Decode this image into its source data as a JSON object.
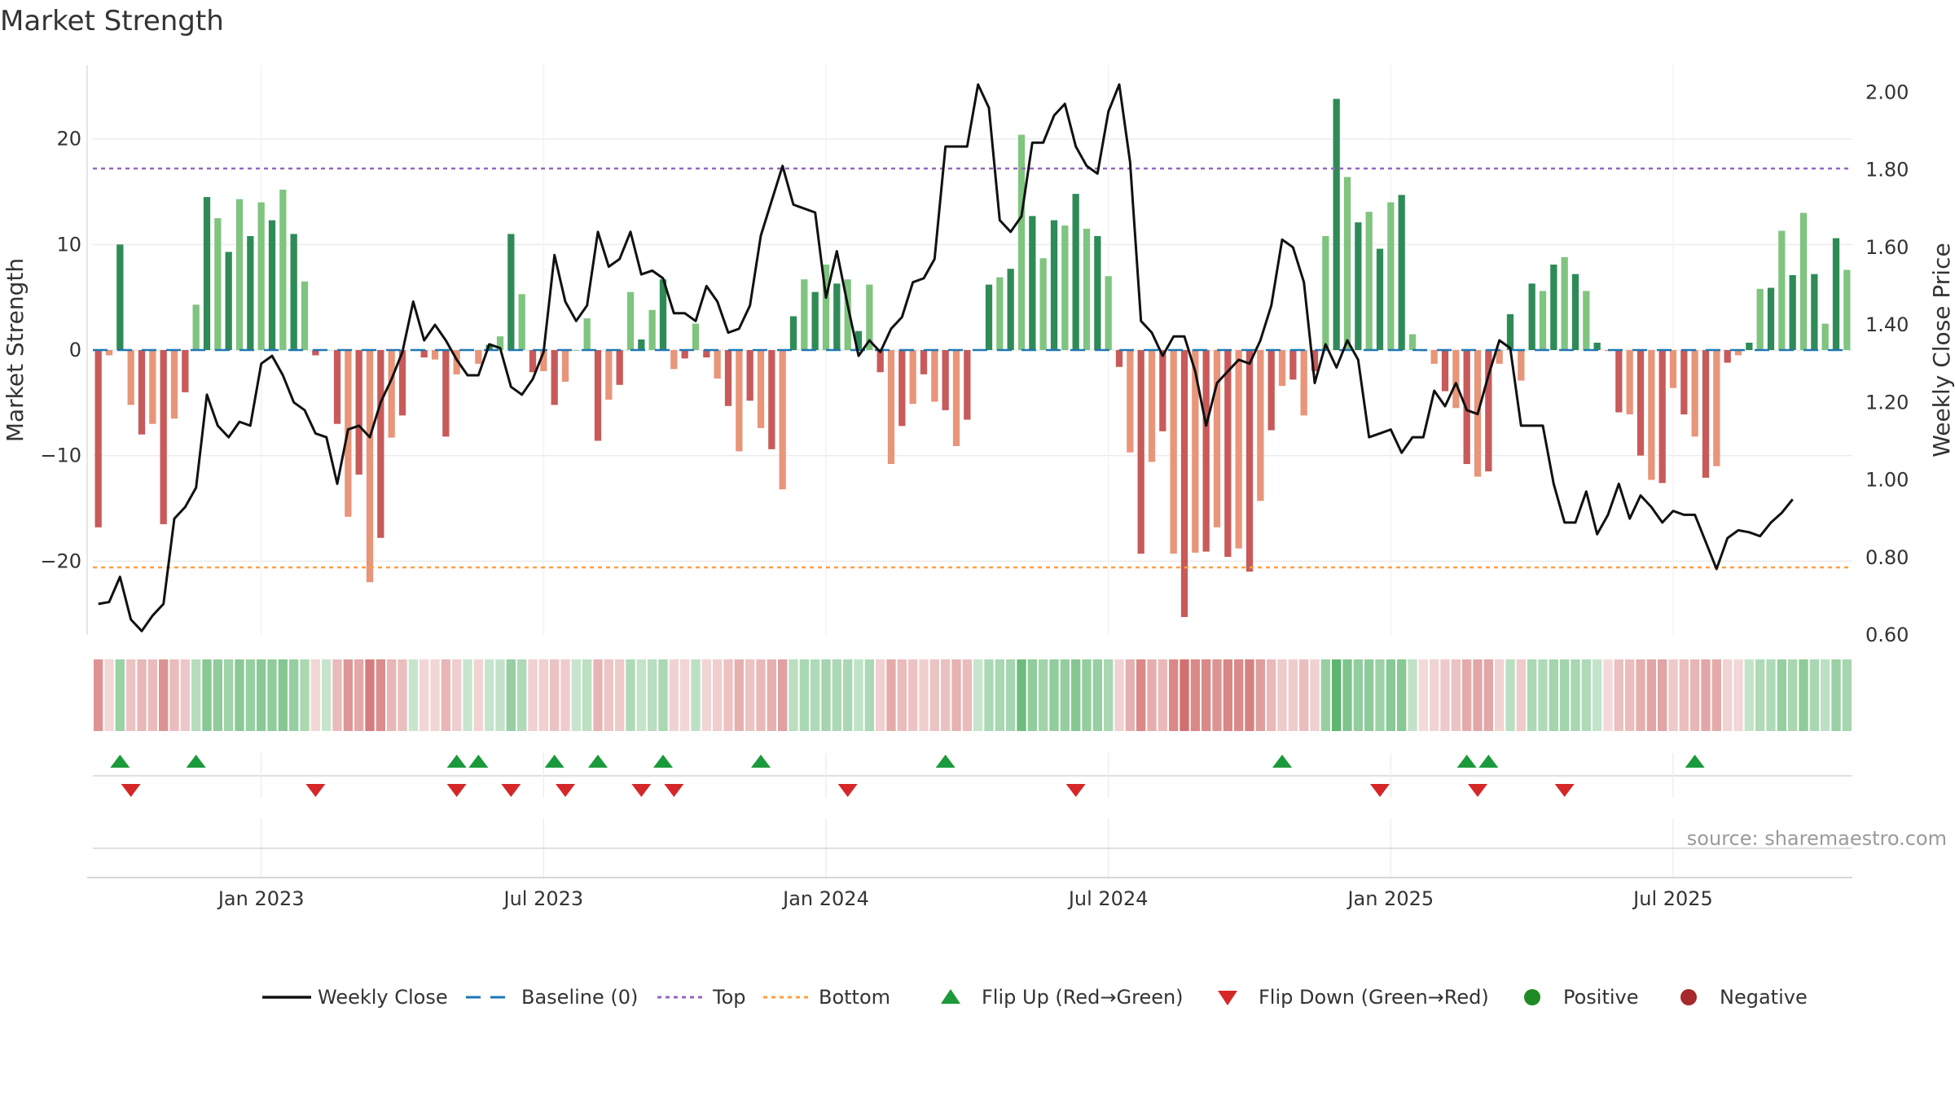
{
  "title": "Market Strength",
  "source": "source: sharemaestro.com",
  "colors": {
    "bar_green_dark": "#2e8b57",
    "bar_green_light": "#7fc47f",
    "bar_red_dark": "#c85a5a",
    "bar_red_light": "#e8957a",
    "close_line": "#111111",
    "baseline": "#1f77b4",
    "top_line": "#9467bd",
    "bottom_line": "#ff9f40",
    "flip_up": "#1a9a3a",
    "flip_down": "#d62728",
    "positive": "#1f8b24",
    "negative": "#a52a2a"
  },
  "chart_data": {
    "type": "bar",
    "title": "Market Strength",
    "ylabel_left": "Market Strength",
    "ylabel_right": "Weekly Close Price",
    "x_ticks": [
      "Jan 2023",
      "Jul 2023",
      "Jan 2024",
      "Jul 2024",
      "Jan 2025",
      "Jul 2025"
    ],
    "x_tick_weeks": [
      15,
      41,
      67,
      93,
      119,
      145
    ],
    "y_left_ticks": [
      "20",
      "10",
      "0",
      "−10",
      "−20"
    ],
    "y_left_tick_values": [
      20,
      10,
      0,
      -10,
      -20
    ],
    "y_left_range": [
      -27,
      27
    ],
    "y_right_ticks": [
      "2.00",
      "1.80",
      "1.60",
      "1.40",
      "1.20",
      "1.00",
      "0.80",
      "0.60"
    ],
    "y_right_tick_values": [
      2.0,
      1.8,
      1.6,
      1.4,
      1.2,
      1.0,
      0.8,
      0.6
    ],
    "y_right_range": [
      0.6,
      2.07
    ],
    "top_level": 17.2,
    "bottom_level": -20.6,
    "baseline": 0,
    "strength": [
      -16.8,
      -0.5,
      10,
      -5.2,
      -8,
      -7,
      -16.5,
      -6.5,
      -4,
      4.3,
      14.5,
      12.5,
      9.3,
      14.3,
      10.8,
      14,
      12.3,
      15.2,
      11,
      6.5,
      -0.5,
      0,
      -7,
      -15.8,
      -11.8,
      -22,
      -17.8,
      -8.3,
      -6.2,
      0,
      -0.7,
      -0.9,
      -8.2,
      -2.3,
      0,
      -1.3,
      0.5,
      1.3,
      11,
      5.3,
      -2.1,
      -2,
      -5.2,
      -3,
      0,
      3,
      -8.6,
      -4.7,
      -3.3,
      5.5,
      1,
      3.8,
      6.7,
      -1.8,
      -0.8,
      2.5,
      -0.7,
      -2.7,
      -5.3,
      -9.6,
      -4.8,
      -7.4,
      -9.4,
      -13.2,
      3.2,
      6.7,
      5.5,
      8.1,
      6.3,
      6.7,
      1.8,
      6.2,
      -2.1,
      -10.8,
      -7.2,
      -5.1,
      -2.3,
      -4.9,
      -5.7,
      -9.1,
      -6.6,
      0,
      6.2,
      6.9,
      7.7,
      20.4,
      12.7,
      8.7,
      12.3,
      11.8,
      14.8,
      11.5,
      10.8,
      7,
      -1.6,
      -9.7,
      -19.3,
      -10.6,
      -7.7,
      -19.3,
      -25.3,
      -19.2,
      -19.1,
      -16.8,
      -19.6,
      -18.8,
      -21,
      -14.3,
      -7.6,
      -3.4,
      -2.8,
      -6.2,
      -2,
      10.8,
      23.8,
      16.4,
      12.1,
      13.1,
      9.6,
      14,
      14.7,
      1.5,
      -0.1,
      -1.3,
      -3.9,
      -5.5,
      -10.8,
      -12,
      -11.5,
      -1.3,
      3.4,
      -2.9,
      6.3,
      5.6,
      8.1,
      8.8,
      7.2,
      5.6,
      0.7,
      -0.1,
      -5.9,
      -6.1,
      -10,
      -12.3,
      -12.6,
      -3.6,
      -6.1,
      -8.2,
      -12.1,
      -11,
      -1.2,
      -0.5,
      0.7,
      5.8,
      5.9,
      11.3,
      7.1,
      13,
      7.2,
      2.5,
      10.6,
      7.6
    ],
    "weekly_close": [
      0.68,
      0.685,
      0.75,
      0.64,
      0.61,
      0.65,
      0.68,
      0.9,
      0.93,
      0.98,
      1.22,
      1.14,
      1.11,
      1.15,
      1.14,
      1.3,
      1.32,
      1.27,
      1.2,
      1.18,
      1.12,
      1.11,
      0.99,
      1.13,
      1.14,
      1.11,
      1.2,
      1.26,
      1.33,
      1.46,
      1.36,
      1.4,
      1.36,
      1.31,
      1.27,
      1.27,
      1.35,
      1.34,
      1.24,
      1.22,
      1.26,
      1.33,
      1.58,
      1.46,
      1.41,
      1.45,
      1.64,
      1.55,
      1.57,
      1.64,
      1.53,
      1.54,
      1.52,
      1.43,
      1.43,
      1.41,
      1.5,
      1.46,
      1.38,
      1.39,
      1.45,
      1.63,
      1.72,
      1.81,
      1.71,
      1.7,
      1.69,
      1.47,
      1.59,
      1.45,
      1.32,
      1.36,
      1.33,
      1.39,
      1.42,
      1.51,
      1.52,
      1.57,
      1.86,
      1.86,
      1.86,
      2.02,
      1.96,
      1.67,
      1.64,
      1.68,
      1.87,
      1.87,
      1.94,
      1.97,
      1.86,
      1.81,
      1.79,
      1.95,
      2.02,
      1.82,
      1.41,
      1.38,
      1.32,
      1.37,
      1.37,
      1.28,
      1.14,
      1.25,
      1.28,
      1.31,
      1.3,
      1.36,
      1.45,
      1.62,
      1.6,
      1.51,
      1.25,
      1.35,
      1.29,
      1.36,
      1.31,
      1.11,
      1.12,
      1.13,
      1.07,
      1.11,
      1.11,
      1.23,
      1.19,
      1.25,
      1.18,
      1.17,
      1.27,
      1.36,
      1.34,
      1.14,
      1.14,
      1.14,
      0.99,
      0.89,
      0.89,
      0.97,
      0.86,
      0.91,
      0.99,
      0.9,
      0.96,
      0.93,
      0.89,
      0.92,
      0.91,
      0.91,
      0.84,
      0.77,
      0.85,
      0.87,
      0.865,
      0.855,
      0.89,
      0.915,
      0.95
    ],
    "flip_up_weeks": [
      2,
      9,
      33,
      35,
      42,
      46,
      52,
      61,
      78,
      109,
      126,
      128,
      147
    ],
    "flip_down_weeks": [
      3,
      20,
      33,
      38,
      43,
      50,
      53,
      69,
      90,
      118,
      127,
      135
    ],
    "legend": [
      {
        "label": "Weekly Close",
        "kind": "line"
      },
      {
        "label": "Baseline (0)",
        "kind": "dash"
      },
      {
        "label": "Top",
        "kind": "dot-purple"
      },
      {
        "label": "Bottom",
        "kind": "dot-orange"
      },
      {
        "label": "Flip Up (Red→Green)",
        "kind": "tri-up"
      },
      {
        "label": "Flip Down (Green→Red)",
        "kind": "tri-down"
      },
      {
        "label": "Positive",
        "kind": "circle-green"
      },
      {
        "label": "Negative",
        "kind": "circle-red"
      }
    ]
  }
}
